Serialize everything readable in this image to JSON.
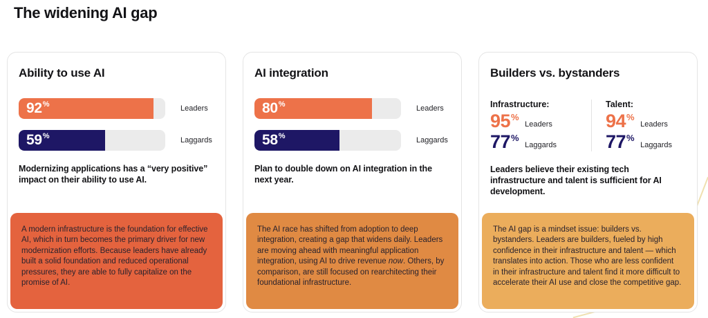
{
  "title": "The widening AI gap",
  "colors": {
    "leaders_orange": "#ED7249",
    "laggards_navy": "#1E1765",
    "bar_track_gray": "#EBEBEB",
    "footer_card1": "#E4633E",
    "footer_card2": "#E08A43",
    "footer_card3": "#EBAD5C"
  },
  "cards": [
    {
      "heading": "Ability to use AI",
      "bars": [
        {
          "value": 92,
          "unit": "%",
          "label": "Leaders"
        },
        {
          "value": 59,
          "unit": "%",
          "label": "Laggards"
        }
      ],
      "subtitle": "Modernizing applications has a “very positive” impact on their ability to use AI.",
      "footer": "A modern infrastructure is the foundation for effective AI, which in turn becomes the primary driver for new modernization efforts. Because leaders have already built a solid foundation and reduced operational pressures, they are able to fully capitalize on the promise of AI."
    },
    {
      "heading": "AI integration",
      "bars": [
        {
          "value": 80,
          "unit": "%",
          "label": "Leaders"
        },
        {
          "value": 58,
          "unit": "%",
          "label": "Laggards"
        }
      ],
      "subtitle": "Plan to double down on AI integration in the next year.",
      "footer_parts": [
        "The AI race has shifted from adoption to deep integration, creating a gap that widens daily. Leaders are moving ahead with meaningful application integration, using AI to drive revenue ",
        "now",
        ". Others, by comparison, are still focused on rearchitecting their foundational infrastructure."
      ]
    },
    {
      "heading": "Builders vs. bystanders",
      "stats": [
        {
          "label": "Infrastructure:",
          "rows": [
            {
              "value": 95,
              "unit": "%",
              "who": "Leaders"
            },
            {
              "value": 77,
              "unit": "%",
              "who": "Laggards"
            }
          ]
        },
        {
          "label": "Talent:",
          "rows": [
            {
              "value": 94,
              "unit": "%",
              "who": "Leaders"
            },
            {
              "value": 77,
              "unit": "%",
              "who": "Laggards"
            }
          ]
        }
      ],
      "subtitle": "Leaders believe their existing tech infrastructure and talent is sufficient for AI development.",
      "footer": "The AI gap is a mindset issue: builders vs. bystanders. Leaders are builders, fueled by high confidence in their infrastructure and talent — which translates into action. Those who are less confident in their infrastructure and talent find it more difficult to accelerate their AI use and close the competitive gap."
    }
  ],
  "chart_data": [
    {
      "type": "bar",
      "orientation": "horizontal",
      "title": "Ability to use AI",
      "categories": [
        "Leaders",
        "Laggards"
      ],
      "values": [
        92,
        59
      ],
      "unit": "%",
      "xlim": [
        0,
        100
      ],
      "colors": [
        "#ED7249",
        "#1E1765"
      ],
      "annotation": "Modernizing applications has a “very positive” impact on their ability to use AI."
    },
    {
      "type": "bar",
      "orientation": "horizontal",
      "title": "AI integration",
      "categories": [
        "Leaders",
        "Laggards"
      ],
      "values": [
        80,
        58
      ],
      "unit": "%",
      "xlim": [
        0,
        100
      ],
      "colors": [
        "#ED7249",
        "#1E1765"
      ],
      "annotation": "Plan to double down on AI integration in the next year."
    },
    {
      "type": "table",
      "title": "Builders vs. bystanders",
      "columns": [
        "Infrastructure",
        "Talent"
      ],
      "rows": [
        {
          "label": "Leaders",
          "Infrastructure": 95,
          "Talent": 94
        },
        {
          "label": "Laggards",
          "Infrastructure": 77,
          "Talent": 77
        }
      ],
      "unit": "%",
      "annotation": "Leaders believe their existing tech infrastructure and talent is sufficient for AI development."
    }
  ]
}
